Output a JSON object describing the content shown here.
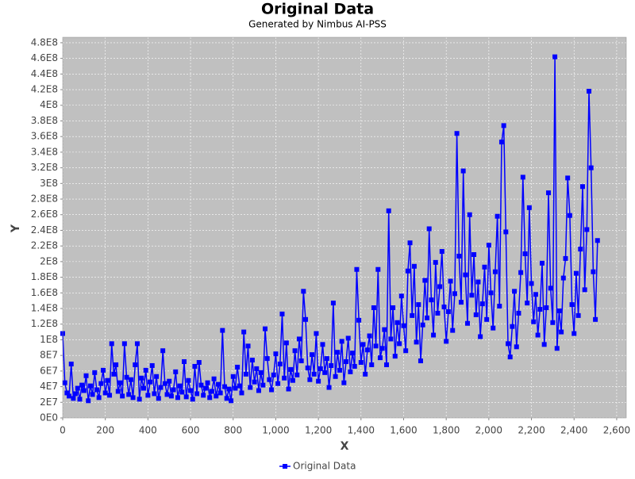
{
  "chart_data": {
    "type": "line",
    "title": "Original Data",
    "subtitle": "Generated by Nimbus AI-PSS",
    "x_label": "X",
    "y_label": "Y",
    "grid": true,
    "legend": "bottom",
    "plot_background": "#c0c0c0",
    "xlim": [
      0,
      2645
    ],
    "ylim": [
      0,
      487000000.0
    ],
    "xticks": [
      0,
      200,
      400,
      600,
      800,
      {
        "value": 1000,
        "label": "1,000"
      },
      {
        "value": 1200,
        "label": "1,200"
      },
      {
        "value": 1400,
        "label": "1,400"
      },
      {
        "value": 1600,
        "label": "1,600"
      },
      {
        "value": 1800,
        "label": "1,800"
      },
      {
        "value": 2000,
        "label": "2,000"
      },
      {
        "value": 2200,
        "label": "2,200"
      },
      {
        "value": 2400,
        "label": "2,400"
      },
      {
        "value": 2600,
        "label": "2,600"
      }
    ],
    "yticks": [
      {
        "value": 0,
        "label": "0E0"
      },
      {
        "value": 20000000.0,
        "label": "2E7"
      },
      {
        "value": 40000000.0,
        "label": "4E7"
      },
      {
        "value": 60000000.0,
        "label": "6E7"
      },
      {
        "value": 80000000.0,
        "label": "8E7"
      },
      {
        "value": 100000000.0,
        "label": "1E8"
      },
      {
        "value": 120000000.0,
        "label": "1.2E8"
      },
      {
        "value": 140000000.0,
        "label": "1.4E8"
      },
      {
        "value": 160000000.0,
        "label": "1.6E8"
      },
      {
        "value": 180000000.0,
        "label": "1.8E8"
      },
      {
        "value": 200000000.0,
        "label": "2E8"
      },
      {
        "value": 220000000.0,
        "label": "2.2E8"
      },
      {
        "value": 240000000.0,
        "label": "2.4E8"
      },
      {
        "value": 260000000.0,
        "label": "2.6E8"
      },
      {
        "value": 280000000.0,
        "label": "2.8E8"
      },
      {
        "value": 300000000.0,
        "label": "3E8"
      },
      {
        "value": 320000000.0,
        "label": "3.2E8"
      },
      {
        "value": 340000000.0,
        "label": "3.4E8"
      },
      {
        "value": 360000000.0,
        "label": "3.6E8"
      },
      {
        "value": 380000000.0,
        "label": "3.8E8"
      },
      {
        "value": 400000000.0,
        "label": "4E8"
      },
      {
        "value": 420000000.0,
        "label": "4.2E8"
      },
      {
        "value": 440000000.0,
        "label": "4.4E8"
      },
      {
        "value": 460000000.0,
        "label": "4.6E8"
      },
      {
        "value": 480000000.0,
        "label": "4.8E8"
      }
    ],
    "x": [
      0,
      10,
      20,
      30,
      40,
      50,
      60,
      70,
      80,
      90,
      100,
      110,
      120,
      130,
      140,
      150,
      160,
      170,
      180,
      190,
      200,
      210,
      220,
      230,
      240,
      250,
      260,
      270,
      280,
      290,
      300,
      310,
      320,
      330,
      340,
      350,
      360,
      370,
      380,
      390,
      400,
      410,
      420,
      430,
      440,
      450,
      460,
      470,
      480,
      490,
      500,
      510,
      520,
      530,
      540,
      550,
      560,
      570,
      580,
      590,
      600,
      610,
      620,
      630,
      640,
      650,
      660,
      670,
      680,
      690,
      700,
      710,
      720,
      730,
      740,
      750,
      760,
      770,
      780,
      790,
      800,
      810,
      820,
      830,
      840,
      850,
      860,
      870,
      880,
      890,
      900,
      910,
      920,
      930,
      940,
      950,
      960,
      970,
      980,
      990,
      1000,
      1010,
      1020,
      1030,
      1040,
      1050,
      1060,
      1070,
      1080,
      1090,
      1100,
      1110,
      1120,
      1130,
      1140,
      1150,
      1160,
      1170,
      1180,
      1190,
      1200,
      1210,
      1220,
      1230,
      1240,
      1250,
      1260,
      1270,
      1280,
      1290,
      1300,
      1310,
      1320,
      1330,
      1340,
      1350,
      1360,
      1370,
      1380,
      1390,
      1400,
      1410,
      1420,
      1430,
      1440,
      1450,
      1460,
      1470,
      1480,
      1490,
      1500,
      1510,
      1520,
      1530,
      1540,
      1550,
      1560,
      1570,
      1580,
      1590,
      1600,
      1610,
      1620,
      1630,
      1640,
      1650,
      1660,
      1670,
      1680,
      1690,
      1700,
      1710,
      1720,
      1730,
      1740,
      1750,
      1760,
      1770,
      1780,
      1790,
      1800,
      1810,
      1820,
      1830,
      1840,
      1850,
      1860,
      1870,
      1880,
      1890,
      1900,
      1910,
      1920,
      1930,
      1940,
      1950,
      1960,
      1970,
      1980,
      1990,
      2000,
      2010,
      2020,
      2030,
      2040,
      2050,
      2060,
      2070,
      2080,
      2090,
      2100,
      2110,
      2120,
      2130,
      2140,
      2150,
      2160,
      2170,
      2180,
      2190,
      2200,
      2210,
      2220,
      2230,
      2240,
      2250,
      2260,
      2270,
      2280,
      2290,
      2300,
      2310,
      2320,
      2330,
      2340,
      2350,
      2360,
      2370,
      2380,
      2390,
      2400,
      2410,
      2420,
      2430,
      2440,
      2450,
      2460,
      2470,
      2480,
      2490,
      2500,
      2510
    ],
    "series": [
      {
        "name": "Original Data",
        "color": "#0000ff",
        "values": [
          108000000.0,
          45000000.0,
          32000000.0,
          28000000.0,
          69000000.0,
          25000000.0,
          31000000.0,
          38000000.0,
          24000000.0,
          42000000.0,
          35000000.0,
          54000000.0,
          22000000.0,
          41000000.0,
          30000000.0,
          58000000.0,
          36000000.0,
          26000000.0,
          44000000.0,
          61000000.0,
          32000000.0,
          48000000.0,
          29000000.0,
          95000000.0,
          56000000.0,
          68000000.0,
          34000000.0,
          45000000.0,
          28000000.0,
          95000000.0,
          52000000.0,
          30000000.0,
          49000000.0,
          26000000.0,
          68000000.0,
          95000000.0,
          24000000.0,
          51000000.0,
          38000000.0,
          61000000.0,
          29000000.0,
          46000000.0,
          67000000.0,
          31000000.0,
          53000000.0,
          25000000.0,
          39000000.0,
          86000000.0,
          44000000.0,
          30000000.0,
          47000000.0,
          28000000.0,
          36000000.0,
          59000000.0,
          26000000.0,
          41000000.0,
          33000000.0,
          72000000.0,
          27000000.0,
          48000000.0,
          35000000.0,
          24000000.0,
          66000000.0,
          31000000.0,
          71000000.0,
          42000000.0,
          29000000.0,
          38000000.0,
          45000000.0,
          26000000.0,
          34000000.0,
          50000000.0,
          28000000.0,
          43000000.0,
          32000000.0,
          112000000.0,
          40000000.0,
          25000000.0,
          37000000.0,
          22000000.0,
          53000000.0,
          38000000.0,
          65000000.0,
          41000000.0,
          32000000.0,
          110000000.0,
          56000000.0,
          92000000.0,
          39000000.0,
          74000000.0,
          46000000.0,
          63000000.0,
          35000000.0,
          58000000.0,
          42000000.0,
          114000000.0,
          76000000.0,
          49000000.0,
          36000000.0,
          55000000.0,
          82000000.0,
          44000000.0,
          69000000.0,
          133000000.0,
          51000000.0,
          96000000.0,
          37000000.0,
          62000000.0,
          48000000.0,
          86000000.0,
          55000000.0,
          101000000.0,
          73000000.0,
          162000000.0,
          126000000.0,
          64000000.0,
          49000000.0,
          81000000.0,
          56000000.0,
          108000000.0,
          47000000.0,
          63000000.0,
          94000000.0,
          58000000.0,
          76000000.0,
          39000000.0,
          67000000.0,
          147000000.0,
          53000000.0,
          84000000.0,
          61000000.0,
          98000000.0,
          45000000.0,
          72000000.0,
          102000000.0,
          59000000.0,
          83000000.0,
          66000000.0,
          190000000.0,
          125000000.0,
          71000000.0,
          94000000.0,
          56000000.0,
          87000000.0,
          105000000.0,
          68000000.0,
          141000000.0,
          92000000.0,
          190000000.0,
          77000000.0,
          89000000.0,
          113000000.0,
          68000000.0,
          265000000.0,
          101000000.0,
          141000000.0,
          79000000.0,
          122000000.0,
          95000000.0,
          156000000.0,
          118000000.0,
          86000000.0,
          188000000.0,
          224000000.0,
          131000000.0,
          194000000.0,
          97000000.0,
          145000000.0,
          73000000.0,
          119000000.0,
          176000000.0,
          128000000.0,
          242000000.0,
          151000000.0,
          106000000.0,
          199000000.0,
          134000000.0,
          168000000.0,
          213000000.0,
          142000000.0,
          98000000.0,
          136000000.0,
          175000000.0,
          112000000.0,
          159000000.0,
          364000000.0,
          207000000.0,
          148000000.0,
          316000000.0,
          183000000.0,
          121000000.0,
          260000000.0,
          157000000.0,
          209000000.0,
          132000000.0,
          174000000.0,
          104000000.0,
          146000000.0,
          193000000.0,
          126000000.0,
          221000000.0,
          160000000.0,
          115000000.0,
          187000000.0,
          258000000.0,
          143000000.0,
          353000000.0,
          374000000.0,
          238000000.0,
          95000000.0,
          78000000.0,
          117000000.0,
          162000000.0,
          91000000.0,
          134000000.0,
          186000000.0,
          308000000.0,
          210000000.0,
          147000000.0,
          269000000.0,
          172000000.0,
          123000000.0,
          158000000.0,
          106000000.0,
          139000000.0,
          198000000.0,
          94000000.0,
          141000000.0,
          288000000.0,
          166000000.0,
          122000000.0,
          462000000.0,
          89000000.0,
          137000000.0,
          110000000.0,
          179000000.0,
          204000000.0,
          307000000.0,
          259000000.0,
          145000000.0,
          108000000.0,
          185000000.0,
          131000000.0,
          216000000.0,
          296000000.0,
          164000000.0,
          241000000.0,
          418000000.0,
          320000000.0,
          187000000.0,
          126000000.0,
          227000000.0
        ]
      }
    ]
  }
}
